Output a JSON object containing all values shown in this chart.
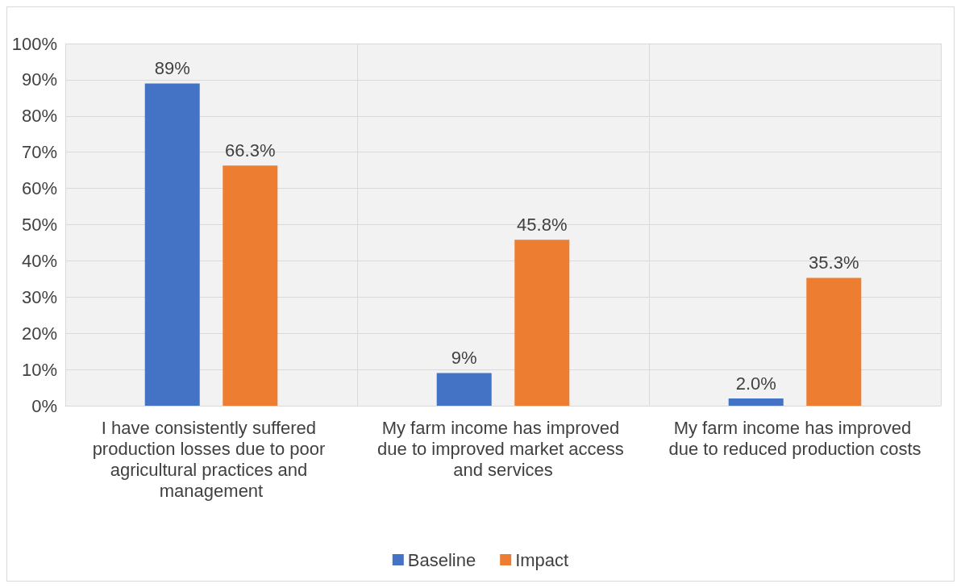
{
  "chart_data": {
    "type": "bar",
    "categories": [
      "I have consistently suffered production losses due to poor agricultural practices and management",
      "My farm income has improved due to improved market access and services",
      "My farm income has improved due to reduced production costs"
    ],
    "series": [
      {
        "name": "Baseline",
        "color": "#4472c4",
        "values": [
          89,
          9,
          2.0
        ],
        "value_labels": [
          "89%",
          "9%",
          "2.0%"
        ]
      },
      {
        "name": "Impact",
        "color": "#ed7d31",
        "values": [
          66.3,
          45.8,
          35.3
        ],
        "value_labels": [
          "66.3%",
          "45.8%",
          "35.3%"
        ]
      }
    ],
    "ylim": [
      0,
      100
    ],
    "yticks": [
      {
        "value": 0,
        "label": "0%"
      },
      {
        "value": 10,
        "label": "10%"
      },
      {
        "value": 20,
        "label": "20%"
      },
      {
        "value": 30,
        "label": "30%"
      },
      {
        "value": 40,
        "label": "40%"
      },
      {
        "value": 50,
        "label": "50%"
      },
      {
        "value": 60,
        "label": "60%"
      },
      {
        "value": 70,
        "label": "70%"
      },
      {
        "value": 80,
        "label": "80%"
      },
      {
        "value": 90,
        "label": "90%"
      },
      {
        "value": 100,
        "label": "100%"
      }
    ],
    "grid": true,
    "legend": "bottom"
  }
}
